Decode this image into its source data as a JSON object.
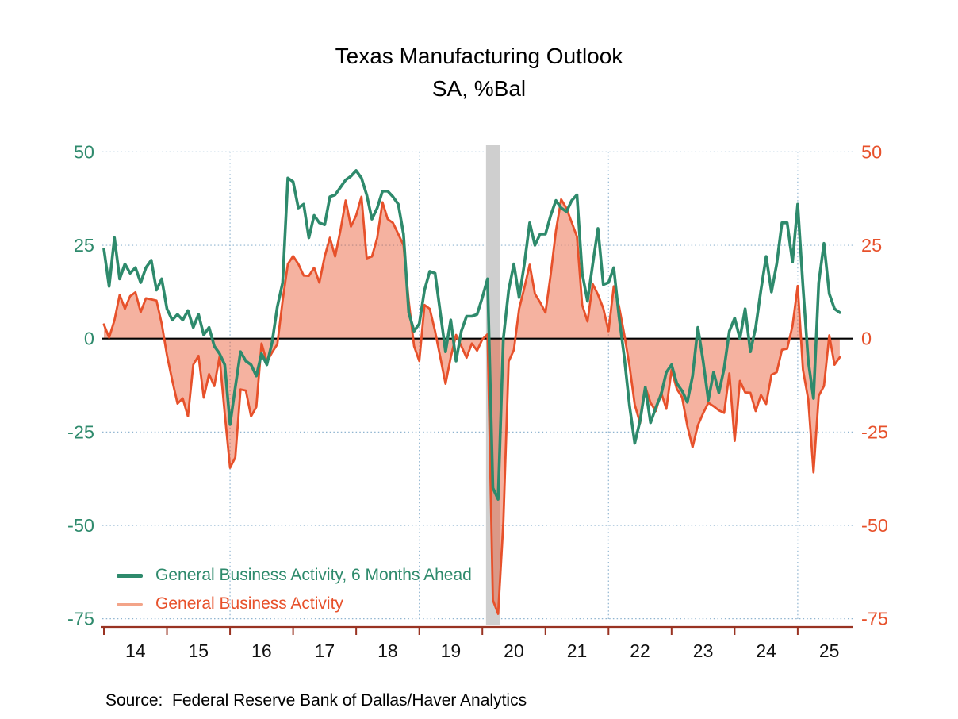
{
  "title": {
    "line1": "Texas Manufacturing Outlook",
    "line2": "SA, %Bal"
  },
  "legend": {
    "items": [
      {
        "label": "General Business Activity, 6 Months Ahead",
        "text_color": "#2e8a6c",
        "swatch_color": "#2e8a6c",
        "swatch_thickness": 5
      },
      {
        "label": "General Business Activity",
        "text_color": "#e7512b",
        "swatch_color": "#f3a489",
        "swatch_thickness": 3
      }
    ]
  },
  "source": {
    "text": "Source:  Federal Reserve Bank of Dallas/Haver Analytics"
  },
  "colors": {
    "future_line": "#2e8a6c",
    "current_line": "#e7512b",
    "current_fill": "rgba(233,85,44,0.45)",
    "left_axis_labels": "#2e8a6c",
    "right_axis_labels": "#e7512b",
    "x_axis": "#993322",
    "x_axis_labels": "#111111",
    "zero_line": "#000000",
    "gridline": "#8fb4d0",
    "recession_band": "#cfcfcf"
  },
  "chart_data": {
    "type": "line",
    "title": "Texas Manufacturing Outlook",
    "subtitle": "SA, %Bal",
    "frequency": "monthly",
    "x_start": "2014-01",
    "x_end": "2025-09",
    "ylim": [
      -75,
      50
    ],
    "y_ticks": [
      50,
      25,
      0,
      -25,
      -50,
      -75
    ],
    "y_tick_labels_left": [
      "50",
      "25",
      "0",
      "-25",
      "-50",
      "-75"
    ],
    "y_tick_labels_right": [
      "50",
      "25",
      "0",
      "-25",
      "-50",
      "-75"
    ],
    "x_tick_years": [
      2014,
      2015,
      2016,
      2017,
      2018,
      2019,
      2020,
      2021,
      2022,
      2023,
      2024,
      2025
    ],
    "x_tick_labels": [
      "14",
      "15",
      "16",
      "17",
      "18",
      "19",
      "20",
      "21",
      "22",
      "23",
      "24",
      "25"
    ],
    "grid": "dotted",
    "vertical_gridline_months": [
      "2016-01",
      "2019-01",
      "2022-01",
      "2025-01"
    ],
    "recession_shading": {
      "from": "2020-02",
      "to": "2020-04"
    },
    "legend_position": "bottom-left",
    "series": [
      {
        "name": "General Business Activity, 6 Months Ahead",
        "color": "#2e8a6c",
        "style": "line",
        "fill_to_zero": false,
        "values": [
          24,
          14,
          27,
          16,
          20,
          17.5,
          19,
          15,
          19,
          21,
          13,
          16,
          8,
          5,
          6.5,
          5,
          7.5,
          3,
          6.5,
          1,
          3,
          -2,
          -4,
          -7,
          -23,
          -13,
          -3.5,
          -6,
          -7,
          -10,
          -4,
          -7,
          -1,
          8.5,
          15,
          43,
          42,
          35,
          36,
          27,
          33,
          31,
          30.5,
          38,
          38.5,
          40.5,
          42.5,
          43.5,
          45,
          43,
          38.5,
          32,
          35,
          39.5,
          39.5,
          38,
          36,
          28,
          7,
          2,
          4,
          13,
          18,
          17.5,
          7,
          -3.5,
          5,
          -6,
          2,
          6,
          6,
          6.5,
          11,
          16,
          -40,
          -43,
          0,
          13,
          20,
          11,
          20,
          31,
          25,
          28,
          28,
          33,
          37,
          35,
          34,
          37,
          38.5,
          17.5,
          10,
          20,
          29.5,
          14.5,
          15,
          19,
          6,
          -5,
          -18,
          -28,
          -22,
          -13,
          -22.5,
          -18.5,
          -15,
          -9,
          -7,
          -12,
          -14,
          -17,
          -10,
          3,
          -6,
          -16.5,
          -9,
          -14.5,
          -8,
          2,
          5.5,
          0,
          8,
          -3.5,
          3,
          13,
          22,
          12.5,
          20,
          31,
          31,
          20.5,
          36,
          14,
          -6,
          -16,
          15,
          25.5,
          12,
          8,
          7
        ]
      },
      {
        "name": "General Business Activity",
        "color": "#e7512b",
        "style": "line",
        "fill_to_zero": true,
        "fill_color": "rgba(233,85,44,0.45)",
        "values": [
          3.8,
          0.3,
          4.9,
          11.7,
          8,
          11.4,
          12.4,
          7.1,
          10.8,
          10.5,
          10.2,
          4,
          -4.4,
          -11.2,
          -17.4,
          -16,
          -20.8,
          -7,
          -4.6,
          -15.8,
          -9.5,
          -12.7,
          -4.9,
          -20.1,
          -34.6,
          -31.8,
          -13.6,
          -13.9,
          -20.8,
          -18.3,
          -1.3,
          -6.2,
          -3.7,
          -1.5,
          10.2,
          20,
          22.1,
          20,
          16.9,
          16.8,
          19,
          15,
          22,
          27,
          22,
          29,
          37,
          30,
          33,
          38,
          21.5,
          22,
          27,
          36.5,
          32,
          31,
          28,
          25,
          10,
          -2,
          -6,
          9,
          8,
          2,
          -5,
          -12.1,
          -5,
          1,
          -2,
          -5.1,
          -1.3,
          -3.2,
          -0.2,
          1.2,
          -70,
          -73.7,
          -49.2,
          -6.1,
          -3,
          8,
          13.6,
          19.8,
          12,
          9.7,
          7,
          17.2,
          28.9,
          37.3,
          34.9,
          31.1,
          27.3,
          9,
          4.6,
          14.6,
          11.8,
          8.1,
          2,
          14,
          8.7,
          1.1,
          -7.3,
          -17.7,
          -22.6,
          -12.9,
          -17.2,
          -19.4,
          -14.4,
          -18.8,
          -8.4,
          -13.5,
          -15.7,
          -23.4,
          -29.1,
          -23.2,
          -20,
          -17.2,
          -18.1,
          -19.2,
          -19.9,
          -9.3,
          -27.4,
          -11.3,
          -14.4,
          -14.5,
          -19.4,
          -15.1,
          -17.5,
          -9.7,
          -9,
          -3,
          -2.7,
          3.4,
          14.1,
          -8.3,
          -16.3,
          -35.8,
          -15.3,
          -12.7,
          0.9,
          -7,
          -5
        ]
      }
    ]
  }
}
